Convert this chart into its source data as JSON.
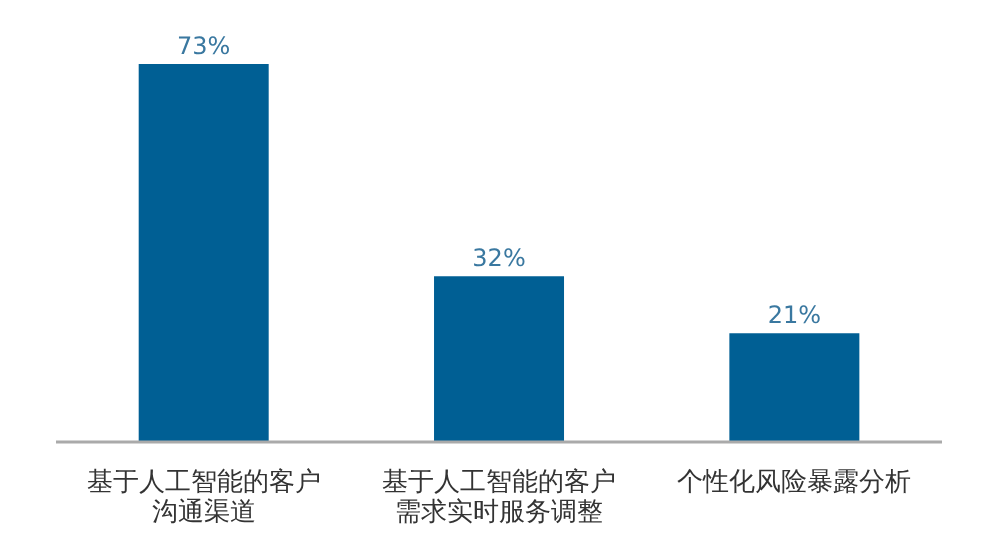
{
  "chart_data": {
    "type": "bar",
    "categories": [
      "基于人工智能的客户沟通渠道",
      "基于人工智能的客户需求实时服务调整",
      "个性化风险暴露分析"
    ],
    "values": [
      73,
      32,
      21
    ],
    "value_labels": [
      "73%",
      "32%",
      "21%"
    ],
    "color": "#005f94"
  }
}
